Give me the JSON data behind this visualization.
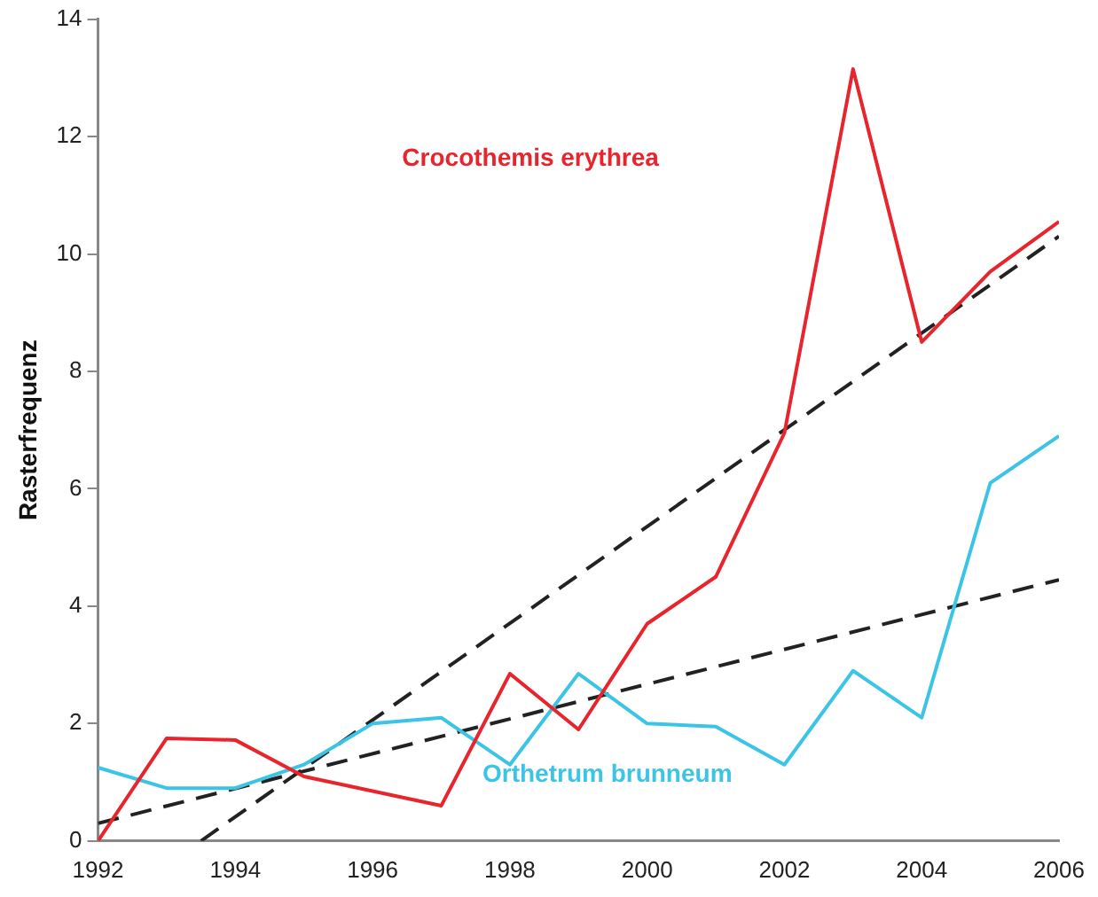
{
  "chart_data": {
    "type": "line",
    "ylabel": "Rasterfrequenz",
    "x": [
      1992,
      1993,
      1994,
      1995,
      1996,
      1997,
      1998,
      1999,
      2000,
      2001,
      2002,
      2003,
      2004,
      2005,
      2006
    ],
    "series": [
      {
        "name": "Crocothemis erythrea",
        "color": "#e8242c",
        "values": [
          0,
          1.75,
          1.72,
          1.1,
          0.85,
          0.6,
          2.85,
          1.9,
          3.7,
          4.5,
          6.95,
          13.15,
          8.5,
          9.7,
          10.55
        ]
      },
      {
        "name": "Orthetrum brunneum",
        "color": "#3cc4e6",
        "values": [
          1.25,
          0.9,
          0.9,
          1.3,
          2.0,
          2.1,
          1.3,
          2.85,
          2.0,
          1.95,
          1.3,
          2.9,
          2.1,
          6.1,
          6.9
        ]
      },
      {
        "type": "line",
        "color": "#222222",
        "line_style": "dashed",
        "x": [
          1993.5,
          2006
        ],
        "values": [
          0,
          10.3
        ]
      },
      {
        "type": "line",
        "color": "#222222",
        "line_style": "dashed",
        "x": [
          1992,
          2006
        ],
        "values": [
          0.3,
          4.45
        ]
      }
    ],
    "xlim": [
      1992,
      2006
    ],
    "xticks": [
      1992,
      1994,
      1996,
      1998,
      2000,
      2002,
      2004,
      2006
    ],
    "ylim": [
      0,
      14
    ],
    "yticks": [
      0,
      2,
      4,
      6,
      8,
      10,
      12,
      14
    ],
    "grid": false,
    "legend": false,
    "marker": "none",
    "line_style": "solid"
  }
}
